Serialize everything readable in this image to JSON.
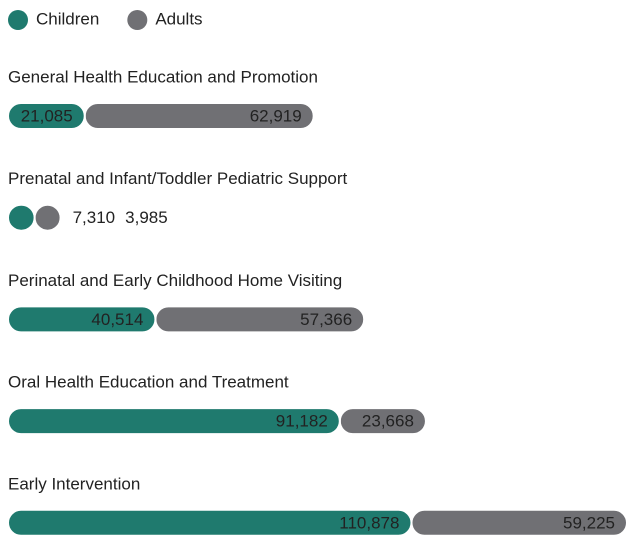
{
  "chart_data": {
    "type": "bar",
    "orientation": "horizontal",
    "stacked": true,
    "categories": [
      "General Health Education and Promotion",
      "Prenatal and Infant/Toddler Pediatric Support",
      "Perinatal and Early Childhood Home Visiting",
      "Oral Health Education and Treatment",
      "Early Intervention"
    ],
    "series": [
      {
        "name": "Children",
        "color": "#1f7a6e",
        "values": [
          21085,
          7310,
          40514,
          91182,
          110878
        ],
        "value_labels": [
          "21,085",
          "7,310",
          "40,514",
          "91,182",
          "110,878"
        ]
      },
      {
        "name": "Adults",
        "color": "#707074",
        "values": [
          62919,
          3985,
          57366,
          23668,
          59225
        ],
        "value_labels": [
          "62,919",
          "3,985",
          "57,366",
          "23,668",
          "59,225"
        ]
      }
    ]
  }
}
